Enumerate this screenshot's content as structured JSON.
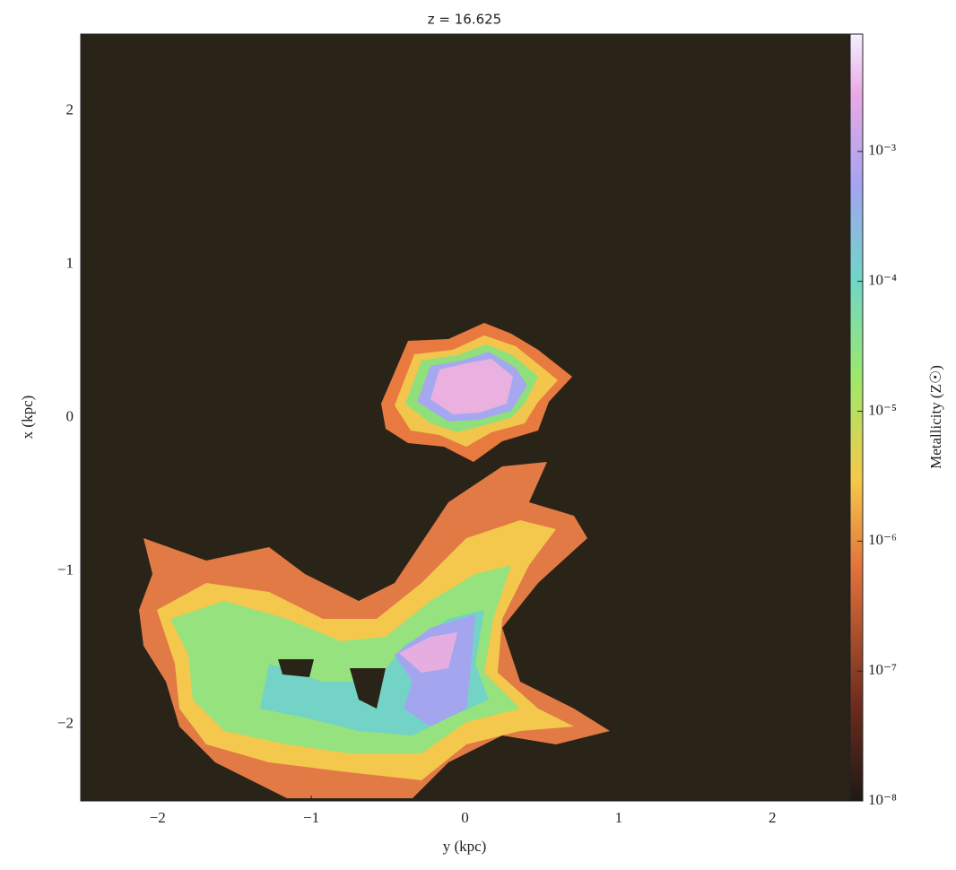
{
  "chart_data": {
    "type": "image",
    "title": "z = 16.625",
    "xlabel": "y  (kpc)",
    "ylabel": "x  (kpc)",
    "xlim": [
      -2.5,
      2.5
    ],
    "ylim": [
      -2.5,
      2.5
    ],
    "xticks": [
      {
        "value": -2,
        "label": "−2"
      },
      {
        "value": -1,
        "label": "−1"
      },
      0,
      1,
      2
    ],
    "yticks": [
      {
        "value": -2,
        "label": "−2"
      },
      {
        "value": -1,
        "label": "−1"
      },
      0,
      1,
      2
    ],
    "colorbar": {
      "label": "Metallicity  (Z☉)",
      "log": true,
      "clim": [
        1e-08,
        0.008
      ],
      "ticks": [
        {
          "value": 1e-08,
          "label": "10⁻⁸"
        },
        {
          "value": 1e-07,
          "label": "10⁻⁷"
        },
        {
          "value": 1e-06,
          "label": "10⁻⁶"
        },
        {
          "value": 1e-05,
          "label": "10⁻⁵"
        },
        {
          "value": 0.0001,
          "label": "10⁻⁴"
        },
        {
          "value": 0.001,
          "label": "10⁻³"
        }
      ]
    }
  }
}
